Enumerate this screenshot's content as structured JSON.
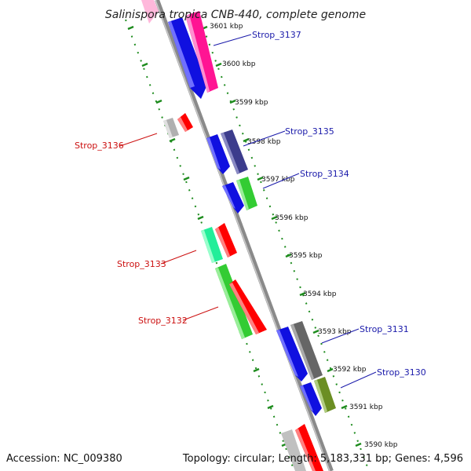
{
  "title": "Salinispora tropica CNB-440, complete genome",
  "footer": {
    "accession": "Accession: NC_009380",
    "stats": "Topology: circular; Length: 5,183,331 bp; Genes: 4,596"
  },
  "colors": {
    "backbone": "#8a8a8a",
    "ticks": "#1e8c1e",
    "forward_label": "#1a1aaa",
    "reverse_label": "#cc1111"
  },
  "kbp_labels": [
    "3601 kbp",
    "3600 kbp",
    "3599 kbp",
    "3598 kbp",
    "3597 kbp",
    "3596 kbp",
    "3595 kbp",
    "3594 kbp",
    "3593 kbp",
    "3592 kbp",
    "3591 kbp",
    "3590 kbp"
  ],
  "gene_labels": {
    "strop_3137": "Strop_3137",
    "strop_3136": "Strop_3136",
    "strop_3135": "Strop_3135",
    "strop_3134": "Strop_3134",
    "strop_3133": "Strop_3133",
    "strop_3132": "Strop_3132",
    "strop_3131": "Strop_3131",
    "strop_3130": "Strop_3130"
  }
}
